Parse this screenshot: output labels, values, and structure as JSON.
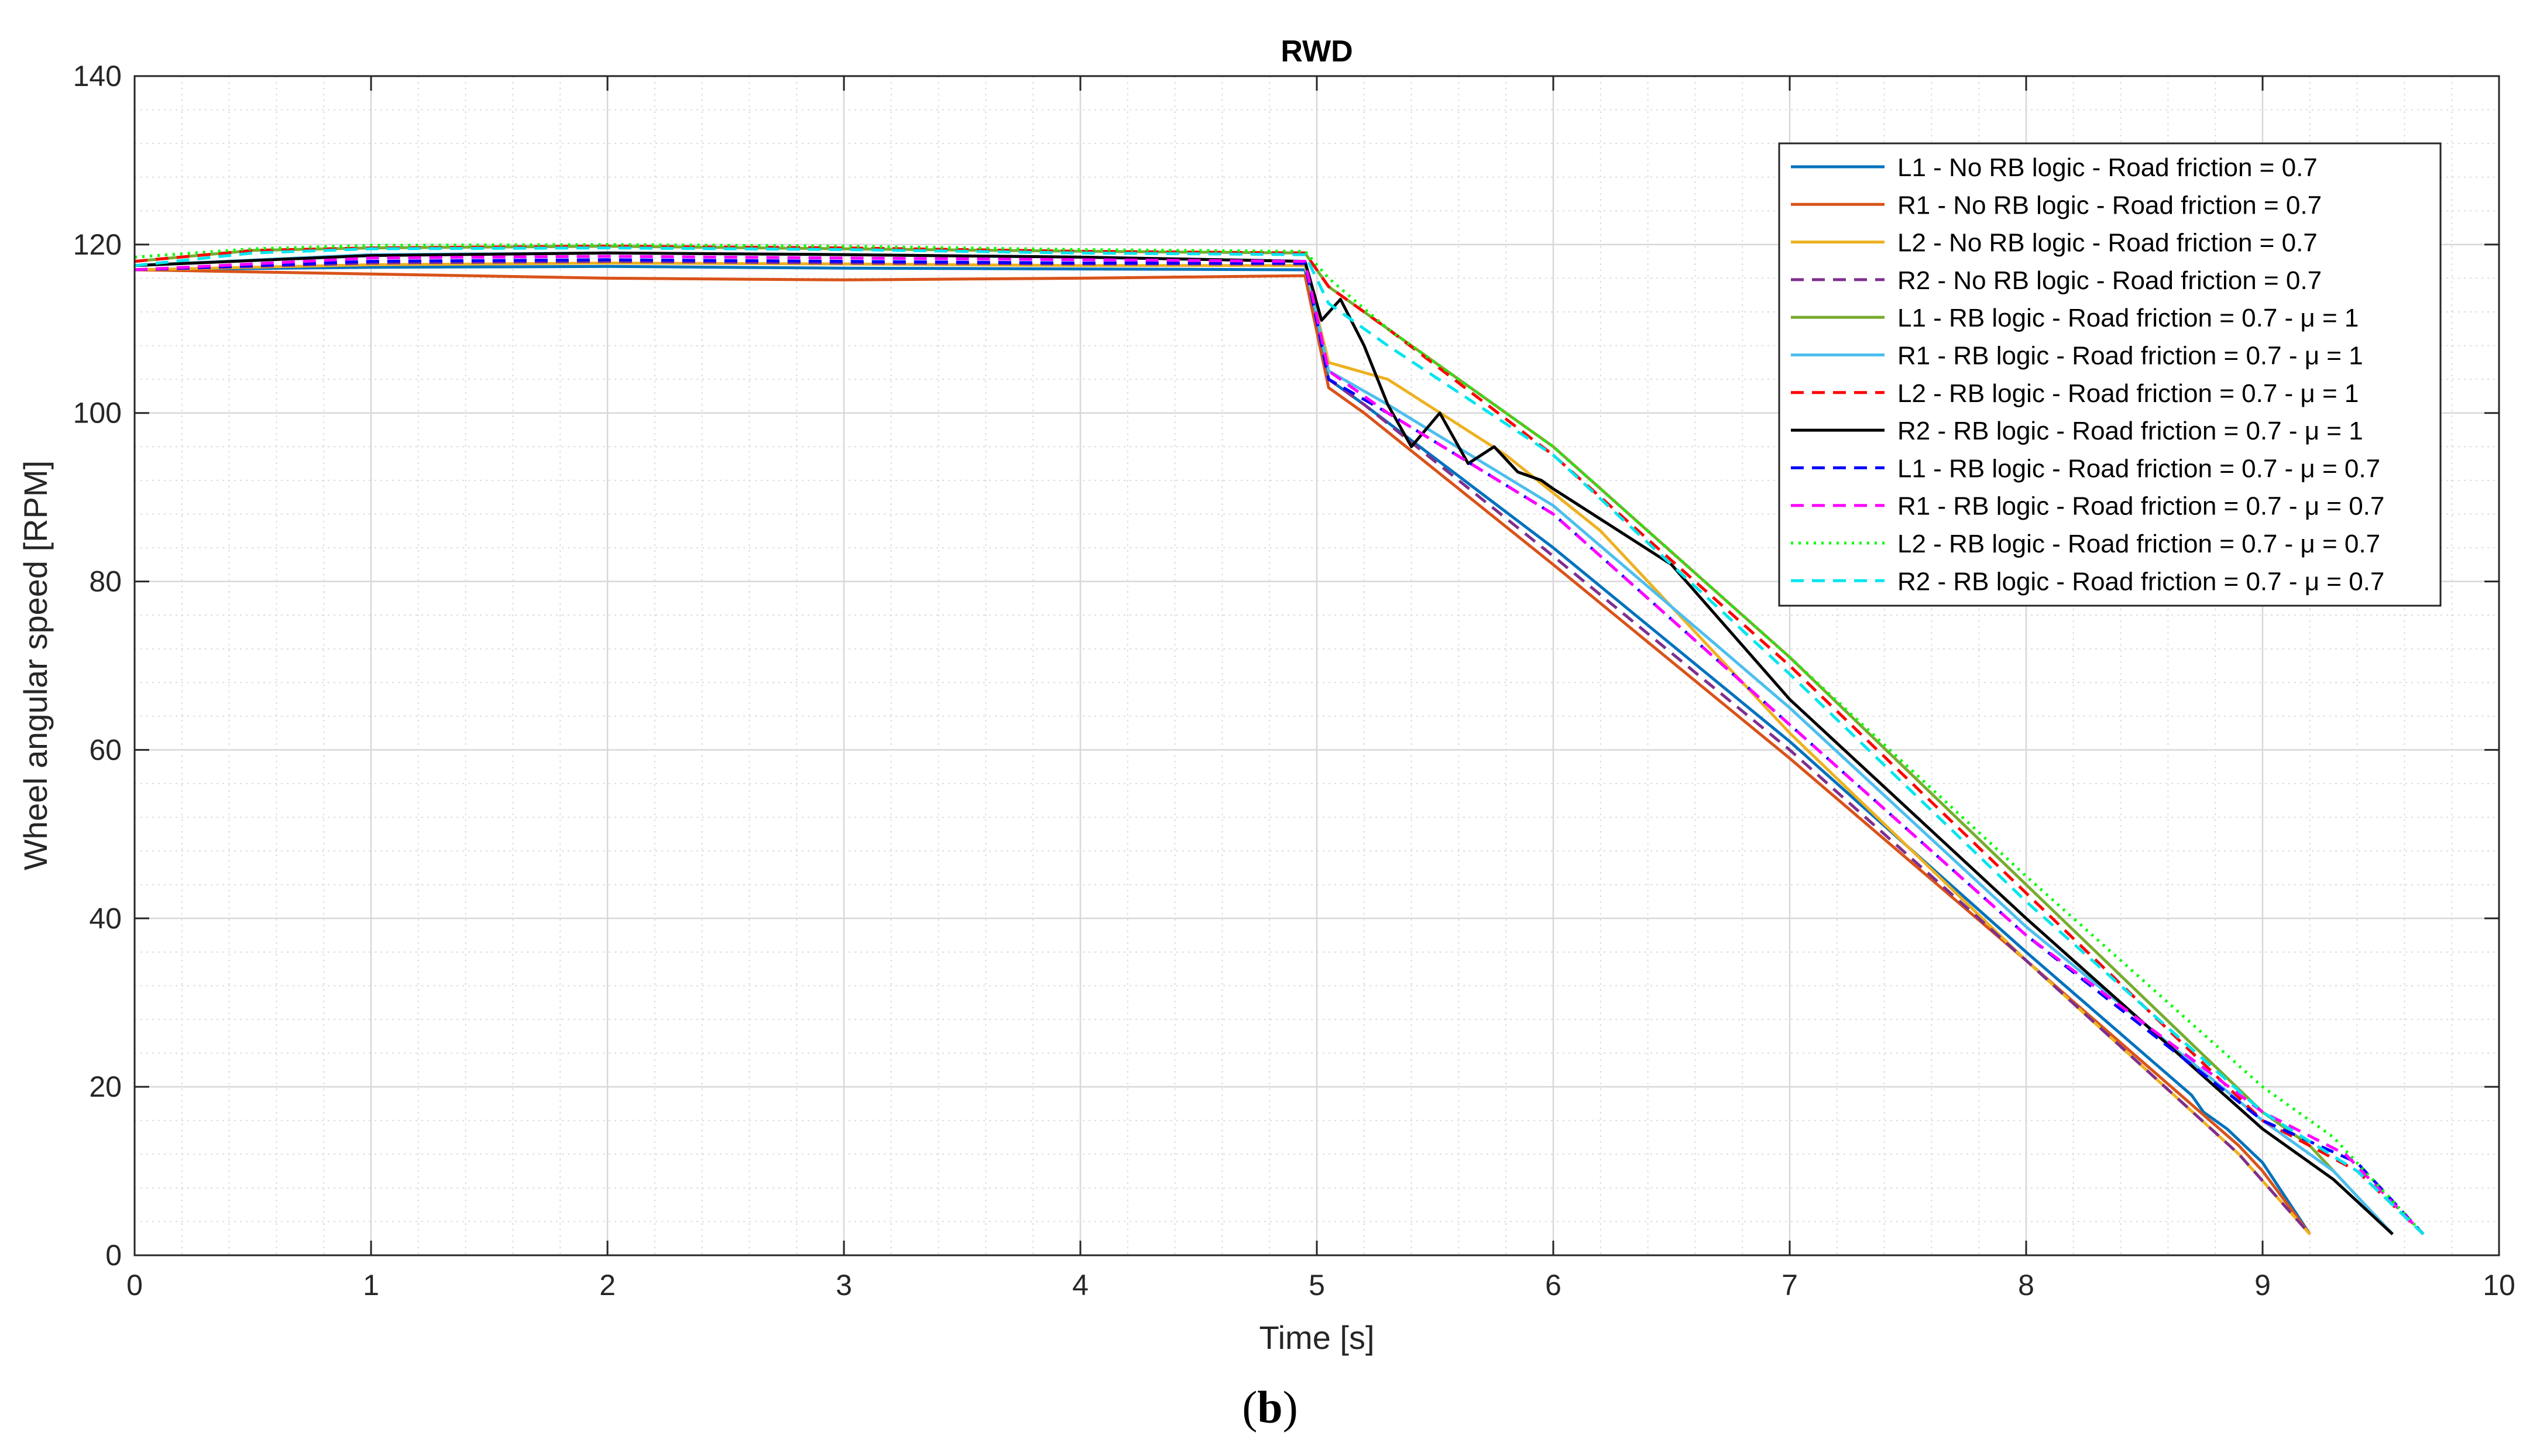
{
  "caption": {
    "open": "(",
    "letter": "b",
    "close": ")"
  },
  "chart_data": {
    "type": "line",
    "title": "RWD",
    "xlabel": "Time [s]",
    "ylabel": "Wheel angular speed [RPM]",
    "xlim": [
      0,
      10
    ],
    "ylim": [
      0,
      140
    ],
    "xticks": [
      0,
      1,
      2,
      3,
      4,
      5,
      6,
      7,
      8,
      9,
      10
    ],
    "yticks": [
      0,
      20,
      40,
      60,
      80,
      100,
      120,
      140
    ],
    "grid": true,
    "legend_position": "top-right",
    "series": [
      {
        "name": "L1 - No RB logic - Road friction = 0.7",
        "color": "#0072BD",
        "dash": "solid",
        "points": [
          [
            0,
            117
          ],
          [
            1,
            117.3
          ],
          [
            2,
            117.4
          ],
          [
            3,
            117.2
          ],
          [
            4,
            117.1
          ],
          [
            4.95,
            117
          ],
          [
            5.05,
            104
          ],
          [
            5.2,
            101
          ],
          [
            6,
            84
          ],
          [
            7,
            61
          ],
          [
            8,
            36
          ],
          [
            8.7,
            19
          ],
          [
            8.75,
            17
          ],
          [
            8.85,
            15
          ],
          [
            9.0,
            11
          ],
          [
            9.2,
            2.5
          ]
        ]
      },
      {
        "name": "R1 - No RB logic - Road friction = 0.7",
        "color": "#D95319",
        "dash": "solid",
        "points": [
          [
            0,
            117
          ],
          [
            1,
            116.5
          ],
          [
            2,
            116
          ],
          [
            3,
            115.8
          ],
          [
            4,
            116
          ],
          [
            4.95,
            116.3
          ],
          [
            5.05,
            103
          ],
          [
            5.2,
            100
          ],
          [
            6,
            82
          ],
          [
            7,
            59
          ],
          [
            8,
            35
          ],
          [
            8.9,
            13
          ],
          [
            9.0,
            10
          ],
          [
            9.2,
            2.5
          ]
        ]
      },
      {
        "name": "L2 - No RB logic - Road friction = 0.7",
        "color": "#EDB120",
        "dash": "solid",
        "points": [
          [
            0,
            117
          ],
          [
            1,
            117.6
          ],
          [
            2,
            117.8
          ],
          [
            3,
            117.7
          ],
          [
            4,
            117.5
          ],
          [
            4.95,
            117.5
          ],
          [
            5.05,
            106
          ],
          [
            5.3,
            104
          ],
          [
            5.8,
            95
          ],
          [
            6.2,
            86
          ],
          [
            7,
            62
          ],
          [
            8,
            35
          ],
          [
            8.9,
            12
          ],
          [
            9.2,
            2.5
          ]
        ]
      },
      {
        "name": "R2 - No RB logic - Road friction = 0.7",
        "color": "#7E2F8E",
        "dash": "dash",
        "points": [
          [
            0,
            117
          ],
          [
            1,
            117.8
          ],
          [
            2,
            118
          ],
          [
            3,
            117.8
          ],
          [
            4,
            117.7
          ],
          [
            4.95,
            117.7
          ],
          [
            5.05,
            104
          ],
          [
            5.2,
            101
          ],
          [
            6,
            83
          ],
          [
            7,
            60
          ],
          [
            8,
            35
          ],
          [
            8.9,
            12
          ],
          [
            9.2,
            2.5
          ]
        ]
      },
      {
        "name": "L1 - RB logic - Road friction = 0.7 - μ = 1",
        "color": "#77AC30",
        "dash": "solid",
        "points": [
          [
            0,
            118
          ],
          [
            0.5,
            119.3
          ],
          [
            1,
            119.6
          ],
          [
            2,
            119.8
          ],
          [
            3,
            119.5
          ],
          [
            4,
            119.2
          ],
          [
            4.95,
            119
          ],
          [
            5.05,
            115
          ],
          [
            5.3,
            110
          ],
          [
            6,
            96
          ],
          [
            7,
            71
          ],
          [
            8,
            44
          ],
          [
            9,
            17
          ],
          [
            9.2,
            13
          ],
          [
            9.55,
            2.5
          ]
        ]
      },
      {
        "name": "R1 - RB logic - Road friction = 0.7 - μ = 1",
        "color": "#4DBEEE",
        "dash": "solid",
        "points": [
          [
            0,
            117.5
          ],
          [
            1,
            118.8
          ],
          [
            2,
            119
          ],
          [
            3,
            118.8
          ],
          [
            4,
            118.5
          ],
          [
            4.95,
            118
          ],
          [
            5.05,
            105
          ],
          [
            5.3,
            101
          ],
          [
            6,
            89
          ],
          [
            7,
            65
          ],
          [
            8,
            39
          ],
          [
            9,
            16
          ],
          [
            9.3,
            10
          ],
          [
            9.55,
            2.5
          ]
        ]
      },
      {
        "name": "L2 - RB logic - Road friction = 0.7 - μ = 1",
        "color": "#FF0000",
        "dash": "dash",
        "points": [
          [
            0,
            118
          ],
          [
            0.5,
            119.3
          ],
          [
            1,
            119.6
          ],
          [
            2,
            119.8
          ],
          [
            3,
            119.6
          ],
          [
            4,
            119.2
          ],
          [
            4.95,
            119
          ],
          [
            5.05,
            115
          ],
          [
            5.3,
            110
          ],
          [
            6,
            95
          ],
          [
            7,
            70
          ],
          [
            8,
            43
          ],
          [
            9,
            16
          ],
          [
            9.4,
            10
          ],
          [
            9.68,
            2.5
          ]
        ]
      },
      {
        "name": "R2 - RB logic - Road friction = 0.7 - μ = 1",
        "color": "#000000",
        "dash": "solid",
        "points": [
          [
            0,
            117.5
          ],
          [
            1,
            118.7
          ],
          [
            2,
            119
          ],
          [
            3,
            118.8
          ],
          [
            4,
            118.5
          ],
          [
            4.95,
            118
          ],
          [
            5.02,
            111
          ],
          [
            5.1,
            113.5
          ],
          [
            5.2,
            108
          ],
          [
            5.3,
            101
          ],
          [
            5.4,
            96
          ],
          [
            5.52,
            100
          ],
          [
            5.64,
            94
          ],
          [
            5.75,
            96
          ],
          [
            5.85,
            93
          ],
          [
            5.95,
            92
          ],
          [
            6,
            91
          ],
          [
            6.5,
            82
          ],
          [
            7,
            66
          ],
          [
            8,
            40
          ],
          [
            9,
            15
          ],
          [
            9.3,
            9
          ],
          [
            9.55,
            2.5
          ]
        ]
      },
      {
        "name": "L1 - RB logic - Road friction = 0.7 - μ = 0.7",
        "color": "#0000FF",
        "dash": "dash",
        "points": [
          [
            0,
            117
          ],
          [
            1,
            118
          ],
          [
            2,
            118.2
          ],
          [
            3,
            118
          ],
          [
            4,
            117.8
          ],
          [
            4.95,
            117.8
          ],
          [
            5.05,
            104
          ],
          [
            5.3,
            100
          ],
          [
            6,
            88
          ],
          [
            7,
            63
          ],
          [
            8,
            38
          ],
          [
            9,
            16
          ],
          [
            9.4,
            11
          ],
          [
            9.68,
            2.5
          ]
        ]
      },
      {
        "name": "R1 - RB logic - Road friction = 0.7 - μ = 0.7",
        "color": "#FF00FF",
        "dash": "dash",
        "points": [
          [
            0,
            117
          ],
          [
            1,
            118.4
          ],
          [
            2,
            118.6
          ],
          [
            3,
            118.4
          ],
          [
            4,
            118.2
          ],
          [
            4.95,
            118
          ],
          [
            5.05,
            105
          ],
          [
            5.3,
            100
          ],
          [
            6,
            88
          ],
          [
            7,
            63
          ],
          [
            8,
            38
          ],
          [
            9,
            17
          ],
          [
            9.35,
            12
          ],
          [
            9.68,
            2.5
          ]
        ]
      },
      {
        "name": "L2 - RB logic - Road friction = 0.7 - μ = 0.7",
        "color": "#00FF00",
        "dash": "dot",
        "points": [
          [
            0,
            118.5
          ],
          [
            0.5,
            119.5
          ],
          [
            1,
            119.9
          ],
          [
            2,
            120
          ],
          [
            3,
            119.8
          ],
          [
            4,
            119.4
          ],
          [
            4.95,
            119.2
          ],
          [
            5.05,
            116
          ],
          [
            5.3,
            110
          ],
          [
            6,
            96
          ],
          [
            7,
            71
          ],
          [
            8,
            45
          ],
          [
            9,
            20
          ],
          [
            9.3,
            14
          ],
          [
            9.68,
            2.5
          ]
        ]
      },
      {
        "name": "R2 - RB logic - Road friction = 0.7 - μ = 0.7",
        "color": "#00E5EE",
        "dash": "dash",
        "points": [
          [
            0,
            117.5
          ],
          [
            0.5,
            119
          ],
          [
            1,
            119.5
          ],
          [
            2,
            119.6
          ],
          [
            3,
            119.4
          ],
          [
            4,
            119
          ],
          [
            4.95,
            118.8
          ],
          [
            5.05,
            113
          ],
          [
            5.3,
            108
          ],
          [
            6,
            95
          ],
          [
            7,
            69
          ],
          [
            8,
            42
          ],
          [
            9,
            17
          ],
          [
            9.4,
            10
          ],
          [
            9.68,
            2.5
          ]
        ]
      }
    ]
  }
}
